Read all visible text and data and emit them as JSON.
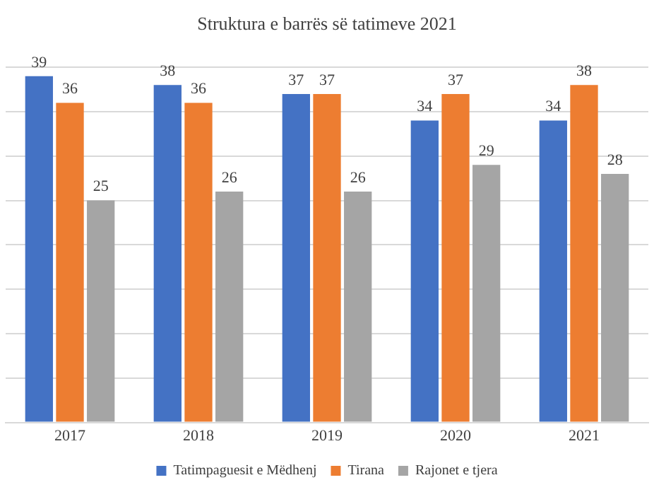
{
  "chart_data": {
    "type": "bar",
    "title": "Struktura e barrës së tatimeve 2021",
    "categories": [
      "2017",
      "2018",
      "2019",
      "2020",
      "2021"
    ],
    "series": [
      {
        "name": "Tatimpaguesit e Mëdhenj",
        "color": "#4472c4",
        "values": [
          39,
          38,
          37,
          34,
          34
        ]
      },
      {
        "name": "Tirana",
        "color": "#ed7d31",
        "values": [
          36,
          36,
          37,
          37,
          38
        ]
      },
      {
        "name": "Rajonet e tjera",
        "color": "#a5a5a5",
        "values": [
          25,
          26,
          26,
          29,
          28
        ]
      }
    ],
    "ylim": [
      0,
      40
    ],
    "yticks": [
      {
        "value": 0,
        "label": null
      },
      {
        "value": 5,
        "label": null
      },
      {
        "value": 10,
        "label": null
      },
      {
        "value": 15,
        "label": null
      },
      {
        "value": 20,
        "label": null
      },
      {
        "value": 25,
        "label": null
      },
      {
        "value": 30,
        "label": null
      },
      {
        "value": 35,
        "label": null
      },
      {
        "value": 40,
        "label": null
      }
    ],
    "tick_labels": "x",
    "grid": "y",
    "legend": "bottom",
    "data_labels": true
  }
}
